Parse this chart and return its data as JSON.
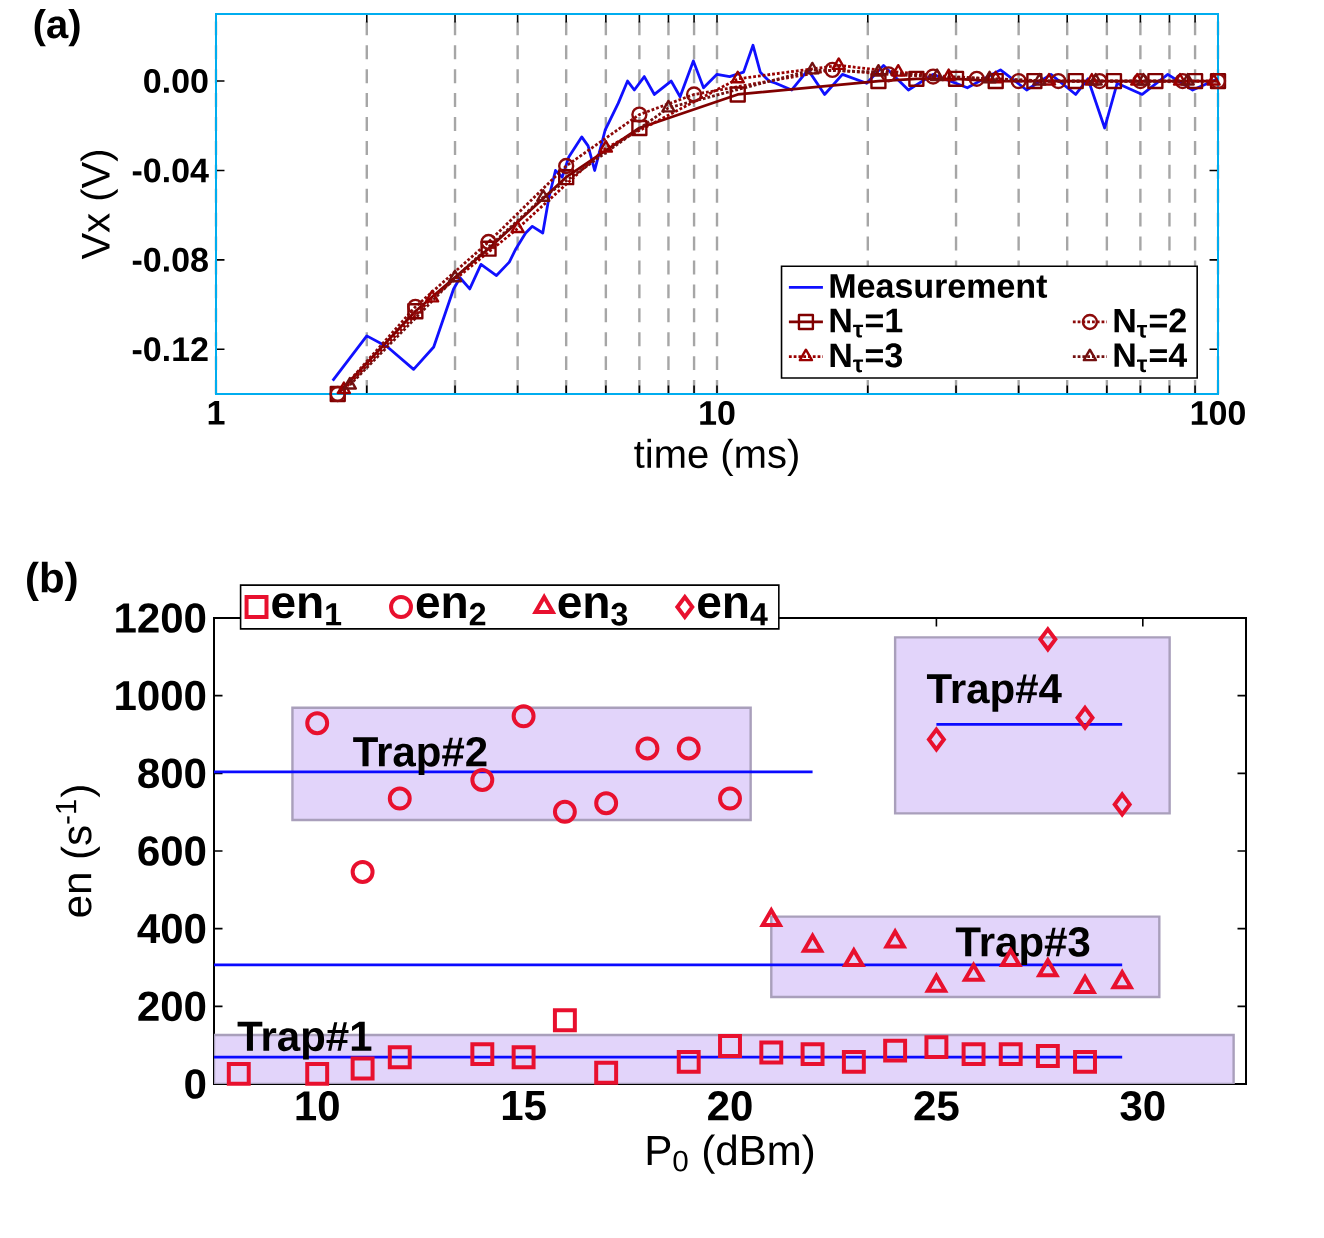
{
  "chart_data": [
    {
      "type": "line",
      "title": "(a)",
      "xlabel": "time (ms)",
      "ylabel": "Vx (V)",
      "log": "x",
      "grid": "x",
      "legend": "bottom right",
      "xlim": [
        1,
        100
      ],
      "ylim": [
        -0.14,
        0.03
      ],
      "xticks": [
        1,
        {
          "value": 2,
          "label": null
        },
        {
          "value": 3,
          "label": null
        },
        {
          "value": 4,
          "label": null
        },
        {
          "value": 5,
          "label": null
        },
        {
          "value": 6,
          "label": null
        },
        {
          "value": 7,
          "label": null
        },
        {
          "value": 8,
          "label": null
        },
        {
          "value": 9,
          "label": null
        },
        10,
        {
          "value": 20,
          "label": null
        },
        {
          "value": 30,
          "label": null
        },
        {
          "value": 40,
          "label": null
        },
        {
          "value": 50,
          "label": null
        },
        {
          "value": 60,
          "label": null
        },
        {
          "value": 70,
          "label": null
        },
        {
          "value": 80,
          "label": null
        },
        {
          "value": 90,
          "label": null
        },
        100
      ],
      "yticks": [
        {
          "value": -0.12,
          "label": "-0.12"
        },
        {
          "value": -0.08,
          "label": "-0.08"
        },
        {
          "value": -0.04,
          "label": "-0.04"
        },
        {
          "value": 0,
          "label": "0.00"
        }
      ],
      "series": [
        {
          "name": "Measurement",
          "color": "#1010ff",
          "marker": "none",
          "line_style": "solid",
          "x": [
            1.71,
            2.0,
            2.2,
            2.48,
            2.72,
            2.98,
            3.07,
            3.21,
            3.38,
            3.63,
            3.85,
            3.97,
            4.15,
            4.28,
            4.49,
            4.62,
            4.76,
            4.91,
            5.06,
            5.37,
            5.53,
            5.7,
            5.98,
            6.35,
            6.63,
            6.84,
            7.16,
            7.5,
            8.1,
            8.44,
            8.97,
            9.4,
            10,
            10.6,
            11.3,
            11.8,
            12.2,
            12.7,
            13.1,
            14.1,
            15.2,
            16.4,
            17.8,
            19.9,
            21.5,
            24.1,
            27.0,
            31.6,
            36.8,
            41.5,
            46.4,
            52.0,
            55.0,
            59.4,
            62.9,
            70.6,
            79.4,
            89.0,
            100
          ],
          "values": [
            -0.134,
            -0.114,
            -0.119,
            -0.129,
            -0.119,
            -0.093,
            -0.088,
            -0.093,
            -0.082,
            -0.087,
            -0.081,
            -0.075,
            -0.068,
            -0.065,
            -0.068,
            -0.052,
            -0.04,
            -0.043,
            -0.034,
            -0.025,
            -0.029,
            -0.04,
            -0.022,
            -0.01,
            0.0,
            -0.004,
            0.002,
            -0.006,
            0.0,
            -0.007,
            0.009,
            -0.003,
            0.003,
            0.002,
            0.004,
            0.016,
            0.004,
            0.0,
            -0.001,
            -0.004,
            0.005,
            -0.006,
            0.003,
            -0.001,
            0.007,
            -0.004,
            0.003,
            -0.003,
            0.005,
            -0.004,
            0.003,
            -0.006,
            0.001,
            -0.021,
            -0.001,
            -0.006,
            0.003,
            -0.004,
            0.001
          ]
        },
        {
          "name": "N$_{τ}$=1",
          "color": "#800000",
          "marker": "square",
          "line_style": "solid",
          "x": [
            1.75,
            2.5,
            3.5,
            5,
            7,
            11,
            21,
            25,
            30,
            36,
            43,
            52,
            62,
            75,
            90,
            100
          ],
          "values": [
            -0.14,
            -0.103,
            -0.075,
            -0.043,
            -0.021,
            -0.006,
            0.0,
            0.001,
            0.001,
            0.0,
            0.0,
            0.0,
            0.0,
            0.0,
            0.0,
            0.0
          ]
        },
        {
          "name": "N$_{τ}$=2",
          "color": "#8c0a0a",
          "marker": "circle",
          "line_style": "dotted",
          "x": [
            1.75,
            2.5,
            3.5,
            5,
            7,
            9,
            17,
            22,
            27,
            33,
            40,
            48,
            58,
            70,
            85,
            100
          ],
          "values": [
            -0.14,
            -0.101,
            -0.072,
            -0.038,
            -0.015,
            -0.006,
            0.005,
            0.003,
            0.002,
            0.001,
            0.0,
            0.0,
            0.0,
            0.0,
            0.0,
            0.0
          ]
        },
        {
          "name": "N$_{τ}$=3",
          "color": "#9a0000",
          "marker": "triangle",
          "line_style": "dotted",
          "x": [
            1.8,
            2.7,
            4,
            6,
            11,
            17.5,
            23,
            29,
            36,
            46,
            56,
            69,
            84,
            98
          ],
          "values": [
            -0.138,
            -0.097,
            -0.066,
            -0.03,
            0.001,
            0.007,
            0.004,
            0.002,
            0.001,
            0.0,
            0.0,
            0.0,
            0.0,
            0.0
          ]
        },
        {
          "name": "N$_{τ}$=4",
          "color": "#731010",
          "marker": "triangle down",
          "line_style": "dotted",
          "x": [
            1.85,
            3.0,
            4.5,
            8,
            15.5,
            21,
            27.5,
            35,
            44,
            57,
            71,
            87
          ],
          "values": [
            -0.136,
            -0.088,
            -0.052,
            -0.012,
            0.005,
            0.004,
            0.002,
            0.001,
            0.0,
            0.0,
            0.0,
            0.0
          ]
        }
      ]
    },
    {
      "type": "scatter",
      "title": "(b)",
      "xlabel": "P$_{0}$ (dBm)",
      "ylabel": "en (s$^{-1}$)",
      "legend": "top",
      "xlim": [
        7.5,
        32.5
      ],
      "ylim": [
        0,
        1200
      ],
      "xticks": [
        10,
        15,
        20,
        25,
        30
      ],
      "yticks": [
        0,
        200,
        400,
        600,
        800,
        1000,
        1200
      ],
      "annotations": [
        "Trap#1",
        "Trap#2",
        "Trap#3",
        "Trap#4"
      ],
      "series": [
        {
          "type": "line",
          "color": "#e2d4fa",
          "x": [
            7.5,
            32.2
          ],
          "values": [
            null,
            null
          ],
          "lower": [
            0,
            0
          ],
          "upper": [
            126,
            126
          ]
        },
        {
          "type": "line",
          "color": "#e2d4fa",
          "x": [
            9.4,
            20.5
          ],
          "values": [
            null,
            null
          ],
          "lower": [
            680,
            680
          ],
          "upper": [
            969,
            969
          ]
        },
        {
          "type": "line",
          "color": "#e2d4fa",
          "x": [
            21.0,
            30.4
          ],
          "values": [
            null,
            null
          ],
          "lower": [
            224,
            224
          ],
          "upper": [
            431,
            431
          ]
        },
        {
          "type": "line",
          "color": "#e2d4fa",
          "x": [
            24.0,
            30.65
          ],
          "values": [
            null,
            null
          ],
          "lower": [
            697,
            697
          ],
          "upper": [
            1150,
            1150
          ]
        },
        {
          "type": "line",
          "color": "#0a0aff",
          "marker": "none",
          "x": [
            7.5,
            29.5
          ],
          "values": [
            69,
            69
          ]
        },
        {
          "type": "line",
          "color": "#0a0aff",
          "marker": "none",
          "x": [
            7.5,
            22
          ],
          "values": [
            804,
            804
          ]
        },
        {
          "type": "line",
          "color": "#0a0aff",
          "marker": "none",
          "x": [
            7.5,
            29.5
          ],
          "values": [
            307,
            307
          ]
        },
        {
          "type": "line",
          "color": "#0a0aff",
          "marker": "none",
          "x": [
            25,
            29.5
          ],
          "values": [
            926,
            926
          ]
        },
        {
          "name": "en$_{1}$",
          "color": "#e8102e",
          "marker": "square",
          "x": [
            8.1,
            10,
            11.1,
            12,
            14,
            15,
            16,
            17,
            19,
            20,
            21,
            22,
            23,
            24,
            25,
            25.9,
            26.8,
            27.7,
            28.6
          ],
          "values": [
            26,
            26,
            40,
            69,
            77,
            69,
            164,
            29,
            57,
            98,
            81,
            77,
            57,
            86,
            95,
            77,
            77,
            72,
            57
          ]
        },
        {
          "name": "en$_{2}$",
          "color": "#e8102e",
          "marker": "circle",
          "x": [
            10,
            11.1,
            12,
            14,
            15,
            16,
            17,
            18,
            19,
            20
          ],
          "values": [
            929,
            546,
            735,
            783,
            947,
            701,
            723,
            864,
            864,
            735
          ]
        },
        {
          "name": "en$_{3}$",
          "color": "#e8102e",
          "marker": "triangle",
          "x": [
            21,
            22,
            23,
            24,
            25,
            25.9,
            26.8,
            27.7,
            28.6,
            29.5
          ],
          "values": [
            422,
            356,
            319,
            367,
            253,
            281,
            319,
            293,
            250,
            262
          ]
        },
        {
          "name": "en$_{4}$",
          "color": "#e8102e",
          "marker": "diamond",
          "x": [
            25,
            27.7,
            28.6,
            29.5
          ],
          "values": [
            887,
            1145,
            943,
            720
          ]
        }
      ]
    }
  ]
}
